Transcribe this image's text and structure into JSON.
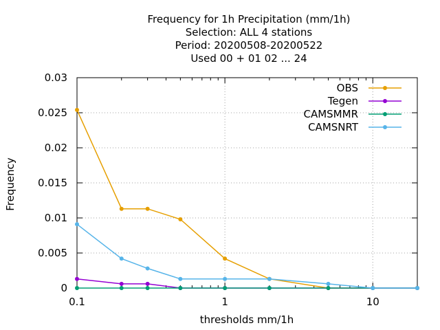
{
  "chart_data": {
    "type": "line",
    "title_lines": [
      "Frequency  for 1h Precipitation (mm/1h)",
      "Selection: ALL      4 stations",
      "Period: 20200508-20200522",
      "Used  00  + 01 02 ... 24"
    ],
    "xlabel": "thresholds mm/1h",
    "ylabel": "Frequency",
    "x_scale": "log",
    "xlim": [
      0.1,
      20
    ],
    "ylim": [
      0,
      0.03
    ],
    "x_ticks": [
      {
        "value": 0.1,
        "label": "0.1"
      },
      {
        "value": 1,
        "label": "1"
      },
      {
        "value": 10,
        "label": "10"
      }
    ],
    "y_ticks": [
      {
        "value": 0,
        "label": "0"
      },
      {
        "value": 0.005,
        "label": "0.005"
      },
      {
        "value": 0.01,
        "label": "0.01"
      },
      {
        "value": 0.015,
        "label": "0.015"
      },
      {
        "value": 0.02,
        "label": "0.02"
      },
      {
        "value": 0.025,
        "label": "0.025"
      },
      {
        "value": 0.03,
        "label": "0.03"
      }
    ],
    "grid": true,
    "legend_position": "top-right",
    "x": [
      0.1,
      0.2,
      0.3,
      0.5,
      1,
      2,
      5,
      10,
      20
    ],
    "series": [
      {
        "name": "OBS",
        "color": "#e69f00",
        "values": [
          0.0254,
          0.0113,
          0.0113,
          0.0098,
          0.0042,
          0.0013,
          0.0,
          0.0,
          0.0
        ]
      },
      {
        "name": "Tegen",
        "color": "#9400d3",
        "values": [
          0.0013,
          0.0006,
          0.0006,
          0.0,
          0.0,
          0.0,
          0.0,
          0.0,
          0.0
        ]
      },
      {
        "name": "CAMSMMR",
        "color": "#009e73",
        "values": [
          0.0,
          0.0,
          0.0,
          0.0,
          0.0,
          0.0,
          0.0,
          0.0,
          0.0
        ]
      },
      {
        "name": "CAMSNRT",
        "color": "#56b4e9",
        "values": [
          0.0091,
          0.0042,
          0.0028,
          0.0013,
          0.0013,
          0.0013,
          0.0006,
          0.0,
          0.0
        ]
      }
    ]
  }
}
